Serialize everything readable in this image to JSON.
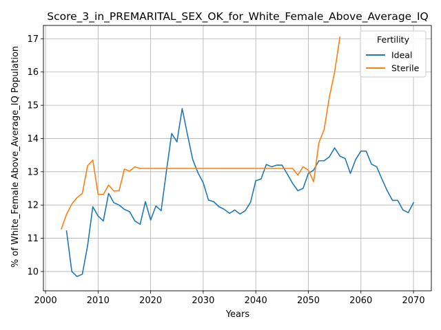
{
  "chart_data": {
    "type": "line",
    "title": "Score_3_in_PREMARITAL_SEX_OK_for_White_Female_Above_Average_IQ",
    "xlabel": "Years",
    "ylabel": "% of White_Female Above_Average_IQ Population",
    "xlim": [
      1999.6,
      2073.4
    ],
    "ylim": [
      9.42,
      17.4
    ],
    "xticks": [
      2000,
      2010,
      2020,
      2030,
      2040,
      2050,
      2060,
      2070
    ],
    "yticks": [
      10,
      11,
      12,
      13,
      14,
      15,
      16,
      17
    ],
    "grid": true,
    "legend": {
      "title": "Fertility",
      "placement": "top-right"
    },
    "series": [
      {
        "name": "Ideal",
        "color": "#1f77b4",
        "x": [
          2004,
          2005,
          2006,
          2007,
          2008,
          2009,
          2010,
          2011,
          2012,
          2013,
          2014,
          2015,
          2016,
          2017,
          2018,
          2019,
          2020,
          2021,
          2022,
          2023,
          2024,
          2025,
          2026,
          2027,
          2028,
          2029,
          2030,
          2031,
          2032,
          2033,
          2034,
          2035,
          2036,
          2037,
          2038,
          2039,
          2040,
          2041,
          2042,
          2043,
          2044,
          2045,
          2046,
          2047,
          2048,
          2049,
          2050,
          2051,
          2052,
          2053,
          2054,
          2055,
          2056,
          2057,
          2058,
          2059,
          2060,
          2061,
          2062,
          2063,
          2064,
          2065,
          2066,
          2067,
          2068,
          2069,
          2070
        ],
        "y": [
          11.22,
          10.0,
          9.85,
          9.92,
          10.77,
          11.95,
          11.67,
          11.52,
          12.35,
          12.07,
          12.0,
          11.87,
          11.8,
          11.52,
          11.42,
          12.1,
          11.55,
          11.97,
          11.83,
          13.02,
          14.15,
          13.9,
          14.9,
          14.12,
          13.37,
          12.97,
          12.67,
          12.15,
          12.1,
          11.95,
          11.87,
          11.75,
          11.85,
          11.73,
          11.83,
          12.08,
          12.73,
          12.78,
          13.22,
          13.15,
          13.2,
          13.2,
          12.93,
          12.65,
          12.43,
          12.5,
          12.95,
          13.05,
          13.33,
          13.33,
          13.45,
          13.72,
          13.47,
          13.4,
          12.95,
          13.37,
          13.62,
          13.62,
          13.23,
          13.15,
          12.78,
          12.43,
          12.14,
          12.14,
          11.85,
          11.77,
          12.07
        ]
      },
      {
        "name": "Sterile",
        "color": "#ff7f0e",
        "x": [
          2003,
          2004,
          2005,
          2006,
          2007,
          2008,
          2009,
          2010,
          2011,
          2012,
          2013,
          2014,
          2015,
          2016,
          2017,
          2018,
          2019,
          2020,
          2021,
          2022,
          2023,
          2024,
          2025,
          2026,
          2027,
          2028,
          2029,
          2030,
          2031,
          2032,
          2033,
          2034,
          2035,
          2036,
          2037,
          2038,
          2039,
          2040,
          2041,
          2042,
          2043,
          2044,
          2045,
          2046,
          2047,
          2048,
          2049,
          2050,
          2051,
          2052,
          2053,
          2054,
          2055,
          2056
        ],
        "y": [
          11.28,
          11.72,
          12.03,
          12.22,
          12.35,
          13.18,
          13.35,
          12.32,
          12.32,
          12.6,
          12.42,
          12.43,
          13.08,
          13.02,
          13.15,
          13.1,
          13.1,
          13.1,
          13.1,
          13.1,
          13.1,
          13.1,
          13.1,
          13.1,
          13.1,
          13.1,
          13.1,
          13.1,
          13.1,
          13.1,
          13.1,
          13.1,
          13.1,
          13.1,
          13.1,
          13.1,
          13.1,
          13.1,
          13.1,
          13.1,
          13.1,
          13.1,
          13.1,
          13.1,
          13.1,
          12.9,
          13.15,
          13.05,
          12.7,
          13.87,
          14.27,
          15.25,
          16.0,
          17.05
        ]
      }
    ]
  }
}
